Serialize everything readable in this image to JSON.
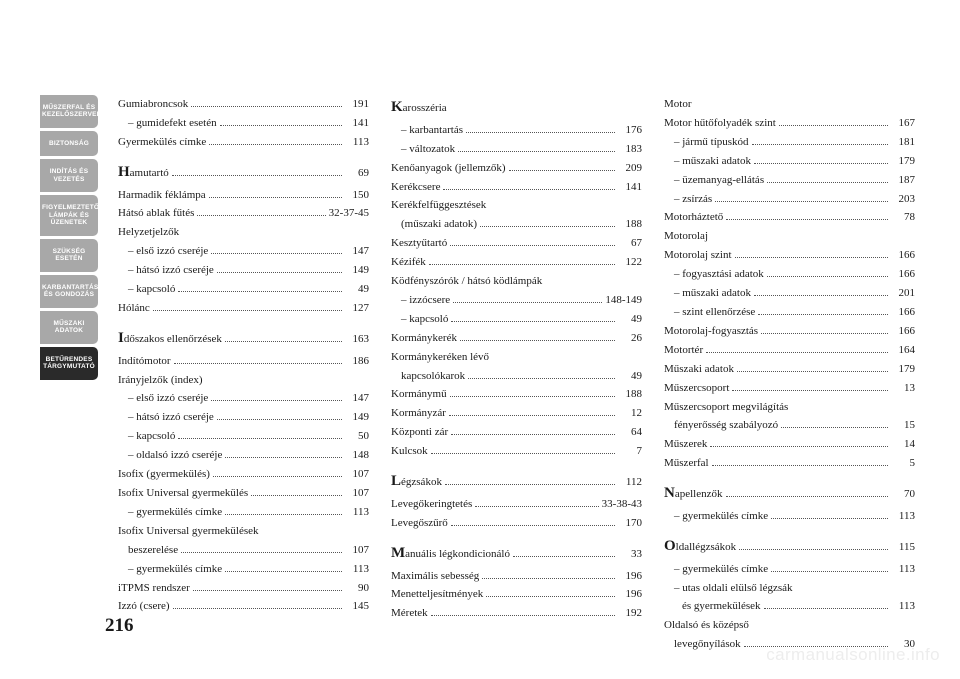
{
  "page_number": "216",
  "watermark": "carmanualsonline.info",
  "sidebar": {
    "tabs": [
      {
        "label": "MŰSZERFAL ÉS\nKEZELŐSZERVEK",
        "active": false
      },
      {
        "label": "BIZTONSÁG",
        "active": false
      },
      {
        "label": "INDÍTÁS ÉS\nVEZETÉS",
        "active": false
      },
      {
        "label": "FIGYELMEZTETŐ\nLÁMPÁK ÉS\nÜZENETEK",
        "active": false
      },
      {
        "label": "SZÜKSÉG\nESETÉN",
        "active": false
      },
      {
        "label": "KARBANTARTÁS\nÉS GONDOZÁS",
        "active": false
      },
      {
        "label": "MŰSZAKI\nADATOK",
        "active": false
      },
      {
        "label": "BETŰRENDES\nTÁRGYMUTATÓ",
        "active": true
      }
    ]
  },
  "columns": [
    [
      {
        "label": "Gumiabroncsok",
        "page": "191"
      },
      {
        "label": "– gumidefekt esetén",
        "page": "141",
        "indent": true
      },
      {
        "label": "Gyermekülés címke",
        "page": "113"
      },
      {
        "label": "Hamutartó",
        "page": "69",
        "big": true,
        "spaceBefore": true
      },
      {
        "label": "Harmadik féklámpa",
        "page": "150"
      },
      {
        "label": "Hátsó ablak fűtés",
        "page": "32-37-45"
      },
      {
        "label": "Helyzetjelzők",
        "page": ""
      },
      {
        "label": "– első izzó cseréje",
        "page": "147",
        "indent": true
      },
      {
        "label": "– hátsó izzó cseréje",
        "page": "149",
        "indent": true
      },
      {
        "label": "– kapcsoló",
        "page": "49",
        "indent": true
      },
      {
        "label": "Hólánc",
        "page": "127"
      },
      {
        "label": "Időszakos ellenőrzések",
        "page": "163",
        "big": true,
        "spaceBefore": true
      },
      {
        "label": "Indítómotor",
        "page": "186"
      },
      {
        "label": "Irányjelzők (index)",
        "page": ""
      },
      {
        "label": "– első izzó cseréje",
        "page": "147",
        "indent": true
      },
      {
        "label": "– hátsó izzó cseréje",
        "page": "149",
        "indent": true
      },
      {
        "label": "– kapcsoló",
        "page": "50",
        "indent": true
      },
      {
        "label": "– oldalsó izzó cseréje",
        "page": "148",
        "indent": true
      },
      {
        "label": "Isofix (gyermekülés)",
        "page": "107"
      },
      {
        "label": "Isofix Universal gyermekülés",
        "page": "107"
      },
      {
        "label": "– gyermekülés címke",
        "page": "113",
        "indent": true
      },
      {
        "label": "Isofix Universal gyermekülések",
        "page": ""
      },
      {
        "label": "beszerelése",
        "page": "107",
        "indent": true
      },
      {
        "label": "– gyermekülés címke",
        "page": "113",
        "indent": true
      },
      {
        "label": "iTPMS rendszer",
        "page": "90"
      },
      {
        "label": "Izzó (csere)",
        "page": "145"
      }
    ],
    [
      {
        "label": "Karosszéria",
        "page": "",
        "big": true
      },
      {
        "label": "– karbantartás",
        "page": "176",
        "indent": true
      },
      {
        "label": "– változatok",
        "page": "183",
        "indent": true
      },
      {
        "label": "Kenőanyagok (jellemzők)",
        "page": "209"
      },
      {
        "label": "Kerékcsere",
        "page": "141"
      },
      {
        "label": "Kerékfelfüggesztések",
        "page": ""
      },
      {
        "label": "(műszaki adatok)",
        "page": "188",
        "indent": true
      },
      {
        "label": "Kesztyűtartó",
        "page": "67"
      },
      {
        "label": "Kézifék",
        "page": "122"
      },
      {
        "label": "Ködfényszórók / hátsó ködlámpák",
        "page": ""
      },
      {
        "label": "– izzócsere",
        "page": "148-149",
        "indent": true
      },
      {
        "label": "– kapcsoló",
        "page": "49",
        "indent": true
      },
      {
        "label": "Kormánykerék",
        "page": "26"
      },
      {
        "label": "Kormánykeréken lévő",
        "page": ""
      },
      {
        "label": "kapcsolókarok",
        "page": "49",
        "indent": true
      },
      {
        "label": "Kormánymű",
        "page": "188"
      },
      {
        "label": "Kormányzár",
        "page": "12"
      },
      {
        "label": "Központi zár",
        "page": "64"
      },
      {
        "label": "Kulcsok",
        "page": "7"
      },
      {
        "label": "Légzsákok",
        "page": "112",
        "big": true,
        "spaceBefore": true
      },
      {
        "label": "Levegőkeringtetés",
        "page": "33-38-43"
      },
      {
        "label": "Levegőszűrő",
        "page": "170"
      },
      {
        "label": "Manuális légkondicionáló",
        "page": "33",
        "big": true,
        "spaceBefore": true
      },
      {
        "label": "Maximális sebesség",
        "page": "196"
      },
      {
        "label": "Menetteljesítmények",
        "page": "196"
      },
      {
        "label": "Méretek",
        "page": "192"
      }
    ],
    [
      {
        "label": "Motor",
        "page": ""
      },
      {
        "label": "Motor hűtőfolyadék szint",
        "page": "167"
      },
      {
        "label": "– jármű típuskód",
        "page": "181",
        "indent": true
      },
      {
        "label": "– műszaki adatok",
        "page": "179",
        "indent": true
      },
      {
        "label": "– üzemanyag-ellátás",
        "page": "187",
        "indent": true
      },
      {
        "label": "– zsírzás",
        "page": "203",
        "indent": true
      },
      {
        "label": "Motorháztető",
        "page": "78"
      },
      {
        "label": "Motorolaj",
        "page": ""
      },
      {
        "label": "Motorolaj szint",
        "page": "166"
      },
      {
        "label": "– fogyasztási adatok",
        "page": "166",
        "indent": true
      },
      {
        "label": "– műszaki adatok",
        "page": "201",
        "indent": true
      },
      {
        "label": "– szint ellenőrzése",
        "page": "166",
        "indent": true
      },
      {
        "label": "Motorolaj-fogyasztás",
        "page": "166"
      },
      {
        "label": "Motortér",
        "page": "164"
      },
      {
        "label": "Műszaki adatok",
        "page": "179"
      },
      {
        "label": "Műszercsoport",
        "page": "13"
      },
      {
        "label": "Műszercsoport megvilágítás",
        "page": ""
      },
      {
        "label": "fényerősség szabályozó",
        "page": "15",
        "indent": true
      },
      {
        "label": "Műszerek",
        "page": "14"
      },
      {
        "label": "Műszerfal",
        "page": "5"
      },
      {
        "label": "Napellenzők",
        "page": "70",
        "big": true,
        "spaceBefore": true
      },
      {
        "label": "– gyermekülés címke",
        "page": "113",
        "indent": true
      },
      {
        "label": "Oldallégzsákok",
        "page": "115",
        "big": true,
        "spaceBefore": true
      },
      {
        "label": "– gyermekülés címke",
        "page": "113",
        "indent": true
      },
      {
        "label": "– utas oldali elülső légzsák",
        "page": "",
        "indent": true
      },
      {
        "label": "és gyermekülések",
        "page": "113",
        "indent": true,
        "extraIndent": true
      },
      {
        "label": "Oldalsó és középső",
        "page": ""
      },
      {
        "label": "levegőnyílások",
        "page": "30",
        "indent": true
      }
    ]
  ]
}
